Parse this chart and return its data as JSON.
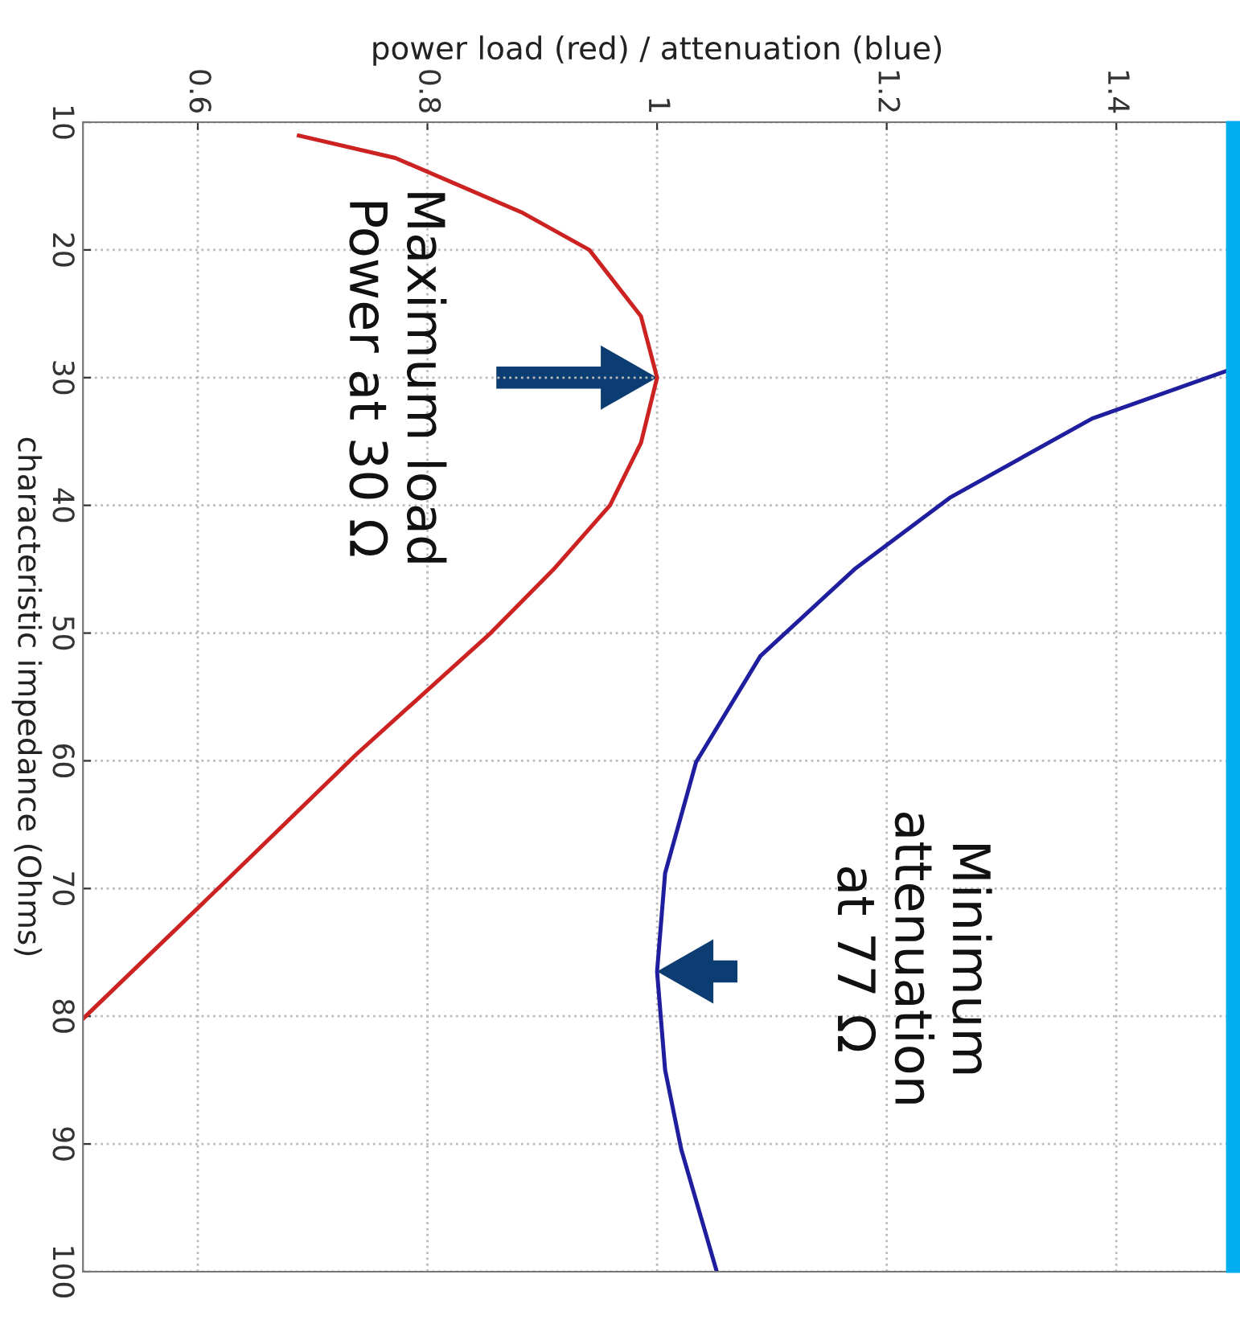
{
  "chart_data": {
    "type": "line",
    "orientation": "horizontal",
    "xlabel": "power load (red) / attenuation (blue)",
    "ylabel": "characteristic impedance (Ohms)",
    "xlim": [
      0.5,
      1.5
    ],
    "xticks": [
      0.6,
      0.8,
      1,
      1.2,
      1.4
    ],
    "ylim": [
      100,
      10
    ],
    "yticks": [
      10,
      20,
      30,
      40,
      50,
      60,
      70,
      80,
      90,
      100
    ],
    "grid": true,
    "line_style": "solid",
    "series": [
      {
        "color": "#cc2222",
        "x": [
          11.05,
          12.8,
          17.1,
          20,
          25.2,
          30,
          35.1,
          40,
          45,
          50,
          59.5,
          69.1,
          80.2
        ],
        "values": [
          0.688,
          0.772,
          0.883,
          0.941,
          0.986,
          1.0,
          0.986,
          0.959,
          0.91,
          0.855,
          0.738,
          0.628,
          0.5
        ]
      },
      {
        "color": "#1e1e9e",
        "x": [
          29.5,
          33.2,
          39.4,
          45,
          51.8,
          60.1,
          68.8,
          76.5,
          84.2,
          90.4,
          100
        ],
        "values": [
          1.495,
          1.379,
          1.255,
          1.172,
          1.09,
          1.034,
          1.007,
          1.0,
          1.007,
          1.021,
          1.052
        ]
      }
    ],
    "annotations": [
      "Maximum load\nPower at 30 Ω",
      "Minimum\nattenuation\nat 77 Ω"
    ]
  }
}
